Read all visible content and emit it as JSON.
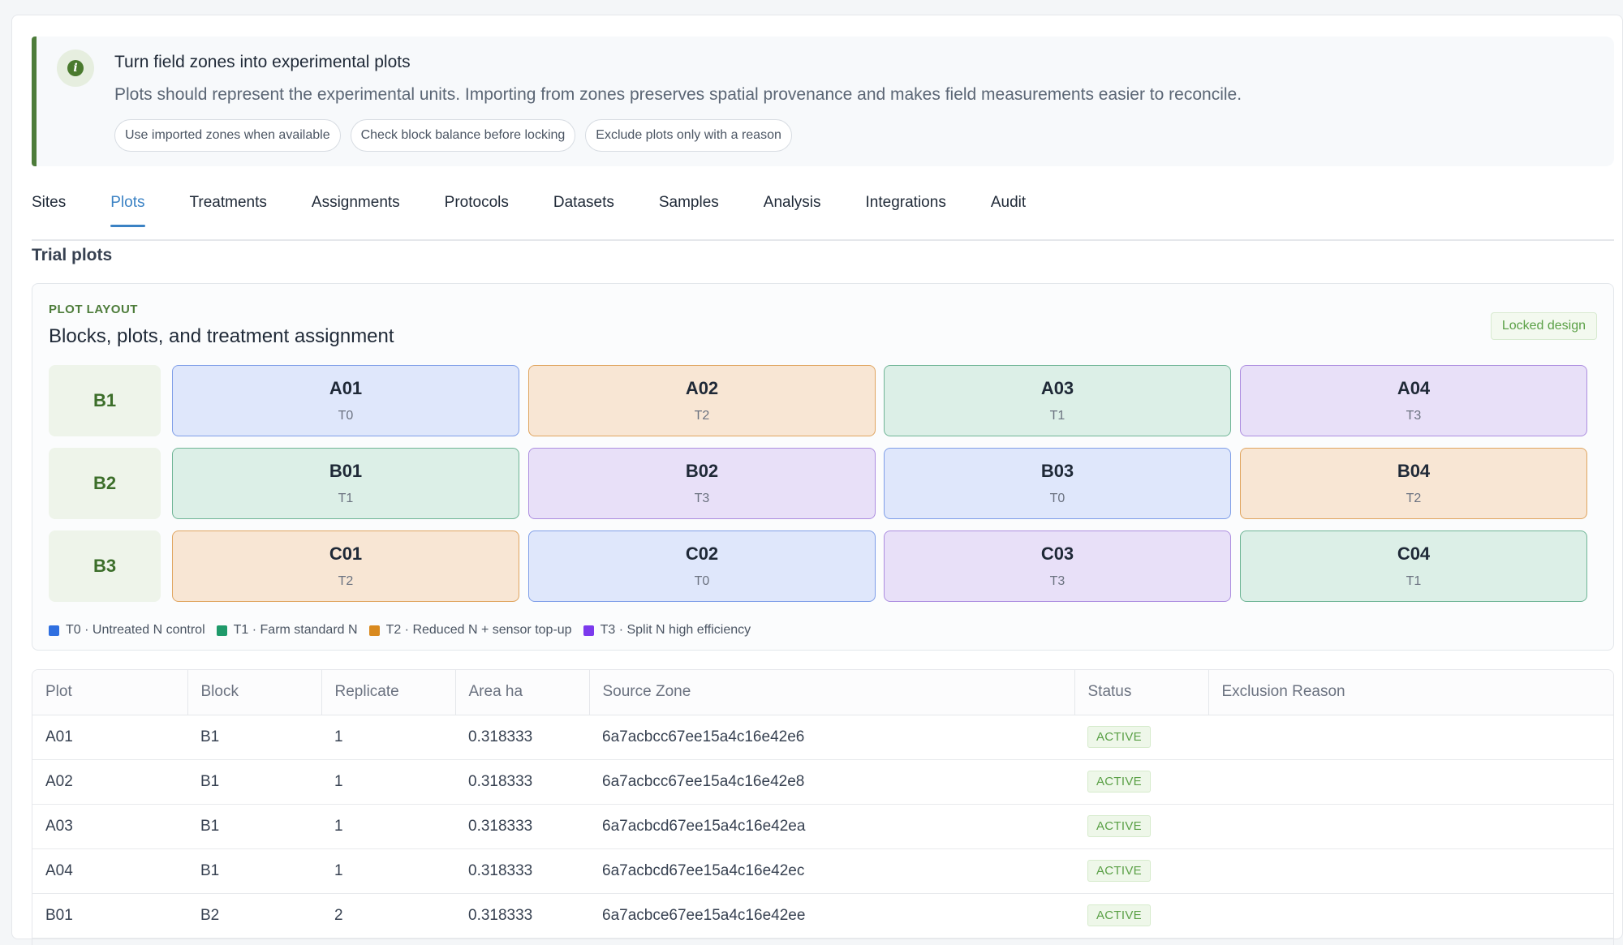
{
  "banner": {
    "title": "Turn field zones into experimental plots",
    "text": "Plots should represent the experimental units. Importing from zones preserves spatial provenance and makes field measurements easier to reconcile.",
    "chips": [
      "Use imported zones when available",
      "Check block balance before locking",
      "Exclude plots only with a reason"
    ]
  },
  "tabs": [
    "Sites",
    "Plots",
    "Treatments",
    "Assignments",
    "Protocols",
    "Datasets",
    "Samples",
    "Analysis",
    "Integrations",
    "Audit"
  ],
  "active_tab": "Plots",
  "section_title": "Trial plots",
  "layout": {
    "eyebrow": "PLOT LAYOUT",
    "heading": "Blocks, plots, and treatment assignment",
    "badge": "Locked design",
    "blocks": [
      {
        "label": "B1",
        "plots": [
          {
            "id": "A01",
            "treatment": "T0"
          },
          {
            "id": "A02",
            "treatment": "T2"
          },
          {
            "id": "A03",
            "treatment": "T1"
          },
          {
            "id": "A04",
            "treatment": "T3"
          }
        ]
      },
      {
        "label": "B2",
        "plots": [
          {
            "id": "B01",
            "treatment": "T1"
          },
          {
            "id": "B02",
            "treatment": "T3"
          },
          {
            "id": "B03",
            "treatment": "T0"
          },
          {
            "id": "B04",
            "treatment": "T2"
          }
        ]
      },
      {
        "label": "B3",
        "plots": [
          {
            "id": "C01",
            "treatment": "T2"
          },
          {
            "id": "C02",
            "treatment": "T0"
          },
          {
            "id": "C03",
            "treatment": "T3"
          },
          {
            "id": "C04",
            "treatment": "T1"
          }
        ]
      }
    ],
    "legend": [
      {
        "label": "T0 · Untreated N control",
        "color": "#2f6fe0"
      },
      {
        "label": "T1 · Farm standard N",
        "color": "#1f9a6a"
      },
      {
        "label": "T2 · Reduced N + sensor top-up",
        "color": "#d98a1f"
      },
      {
        "label": "T3 · Split N high efficiency",
        "color": "#7c3aed"
      }
    ]
  },
  "table": {
    "columns": [
      "Plot",
      "Block",
      "Replicate",
      "Area ha",
      "Source Zone",
      "Status",
      "Exclusion Reason"
    ],
    "rows": [
      [
        "A01",
        "B1",
        "1",
        "0.318333",
        "6a7acbcc67ee15a4c16e42e6",
        "ACTIVE",
        ""
      ],
      [
        "A02",
        "B1",
        "1",
        "0.318333",
        "6a7acbcc67ee15a4c16e42e8",
        "ACTIVE",
        ""
      ],
      [
        "A03",
        "B1",
        "1",
        "0.318333",
        "6a7acbcd67ee15a4c16e42ea",
        "ACTIVE",
        ""
      ],
      [
        "A04",
        "B1",
        "1",
        "0.318333",
        "6a7acbcd67ee15a4c16e42ec",
        "ACTIVE",
        ""
      ],
      [
        "B01",
        "B2",
        "2",
        "0.318333",
        "6a7acbce67ee15a4c16e42ee",
        "ACTIVE",
        ""
      ]
    ]
  }
}
